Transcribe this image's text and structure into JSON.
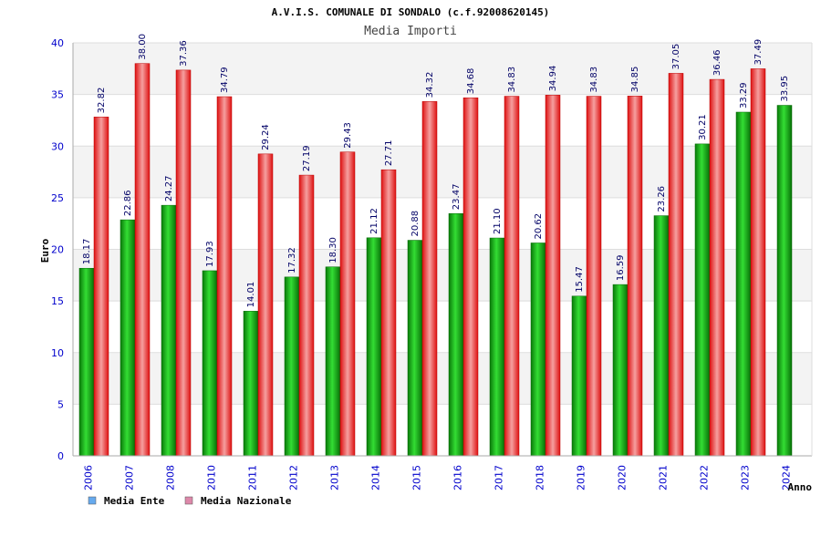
{
  "chart_data": {
    "type": "bar",
    "title": "A.V.I.S. COMUNALE DI SONDALO (c.f.92008620145)",
    "subtitle": "Media Importi",
    "xlabel": "Anno",
    "ylabel": "Euro",
    "ylim": [
      0,
      40
    ],
    "yticks": [
      0,
      5,
      10,
      15,
      20,
      25,
      30,
      35,
      40
    ],
    "grid": true,
    "legend_position": "bottom-left",
    "categories": [
      "2006",
      "2007",
      "2008",
      "2010",
      "2011",
      "2012",
      "2013",
      "2014",
      "2015",
      "2016",
      "2017",
      "2018",
      "2019",
      "2020",
      "2021",
      "2022",
      "2023",
      "2024"
    ],
    "series": [
      {
        "name": "Media Ente",
        "color": "#22aa22",
        "legend_color": "#66aaee",
        "values": [
          18.17,
          22.86,
          24.27,
          17.93,
          14.01,
          17.32,
          18.3,
          21.12,
          20.88,
          23.47,
          21.1,
          20.62,
          15.47,
          16.59,
          23.26,
          30.21,
          33.29,
          33.95
        ],
        "labels": [
          "18.17",
          "22.86",
          "24.27",
          "17.93",
          "14.01",
          "17.32",
          "18.30",
          "21.12",
          "20.88",
          "23.47",
          "21.10",
          "20.62",
          "15.47",
          "16.59",
          "23.26",
          "30.21",
          "33.29",
          "33.95"
        ]
      },
      {
        "name": "Media Nazionale",
        "color": "#ee2222",
        "legend_color": "#dd88aa",
        "values": [
          32.82,
          38.0,
          37.36,
          34.79,
          29.24,
          27.19,
          29.43,
          27.71,
          34.32,
          34.68,
          34.83,
          34.94,
          34.83,
          34.85,
          37.05,
          36.46,
          37.49,
          null
        ],
        "labels": [
          "32.82",
          "38.00",
          "37.36",
          "34.79",
          "29.24",
          "27.19",
          "29.43",
          "27.71",
          "34.32",
          "34.68",
          "34.83",
          "34.94",
          "34.83",
          "34.85",
          "37.05",
          "36.46",
          "37.49",
          null
        ]
      }
    ]
  }
}
